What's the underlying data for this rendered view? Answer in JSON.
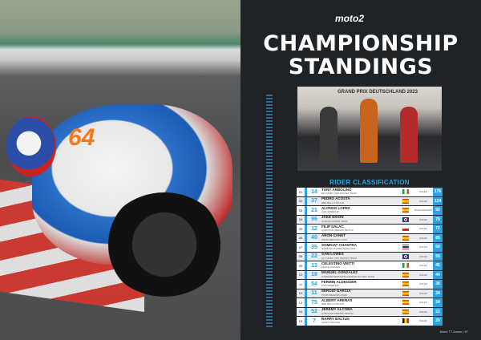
{
  "brand": "moto2",
  "title_line1": "CHAMPIONSHIP",
  "title_line2": "STANDINGS",
  "photo_caption": "GRAND PRIX DEUTSCHLAND 2023",
  "section": "RIDER CLASSIFICATION",
  "rider_number_on_bike": "64",
  "accent": "#2aa3e0",
  "riders": [
    {
      "pos": "01",
      "num": "14",
      "name": "TONY ARBOLINO",
      "team": "ELF MARC VDS RACING TEAM",
      "flag": "italy",
      "bike": "KALEX",
      "pts": "176"
    },
    {
      "pos": "02",
      "num": "37",
      "name": "PEDRO ACOSTA",
      "team": "RED BULL KTM AJO",
      "flag": "spain",
      "bike": "KALEX",
      "pts": "124"
    },
    {
      "pos": "03",
      "num": "21",
      "name": "ALONSO LOPEZ",
      "team": "CAG SPEEDUP",
      "flag": "spain",
      "bike": "BOSCOSCURO",
      "pts": "92"
    },
    {
      "pos": "04",
      "num": "96",
      "name": "JAKE DIXON",
      "team": "GASGAS ASPAR TEAM",
      "flag": "uk",
      "bike": "KALEX",
      "pts": "79"
    },
    {
      "pos": "05",
      "num": "12",
      "name": "FILIP SALAC",
      "team": "QJMOTOR GRESINI MOTO2",
      "flag": "czech",
      "bike": "KALEX",
      "pts": "72"
    },
    {
      "pos": "06",
      "num": "40",
      "name": "ARON CANET",
      "team": "PONS WEGOW LOS40",
      "flag": "spain",
      "bike": "KALEX",
      "pts": "65"
    },
    {
      "pos": "07",
      "num": "35",
      "name": "SOMKIAT CHANTRA",
      "team": "IDEMITSU HONDA TEAM ASIA",
      "flag": "thailand",
      "bike": "KALEX",
      "pts": "59"
    },
    {
      "pos": "08",
      "num": "22",
      "name": "SAM LOWES",
      "team": "ELF MARC VDS RACING TEAM",
      "flag": "uk",
      "bike": "KALEX",
      "pts": "55"
    },
    {
      "pos": "09",
      "num": "13",
      "name": "CELESTINO VIETTI",
      "team": "FANTIC RACING",
      "flag": "italy",
      "bike": "KALEX",
      "pts": "45"
    },
    {
      "pos": "10",
      "num": "18",
      "name": "MANUEL GONZALEZ",
      "team": "CORRADI PERTAMINA MANDALIKA SAG TEAM",
      "flag": "spain",
      "bike": "KALEX",
      "pts": "44"
    },
    {
      "pos": "11",
      "num": "54",
      "name": "FERMIN ALDEGUER",
      "team": "CAG SPEEDUP",
      "flag": "spain",
      "bike": "KALEX",
      "pts": "38"
    },
    {
      "pos": "12",
      "num": "11",
      "name": "SERGIO GARCIA",
      "team": "PONS WEGOW LOS40",
      "flag": "spain",
      "bike": "KALEX",
      "pts": "34"
    },
    {
      "pos": "13",
      "num": "75",
      "name": "ALBERT ARENAS",
      "team": "RED BULL KTM AJO",
      "flag": "spain",
      "bike": "KALEX",
      "pts": "34"
    },
    {
      "pos": "14",
      "num": "52",
      "name": "JEREMY ALCOBA",
      "team": "QJMOTOR GRESINI MOTO2",
      "flag": "spain",
      "bike": "KALEX",
      "pts": "22"
    },
    {
      "pos": "15",
      "num": "7",
      "name": "BARRY BALTUS",
      "team": "FANTIC RACING",
      "flag": "belgium",
      "bike": "KALEX",
      "pts": "20"
    }
  ],
  "footer": "Motul TT Assen | 87"
}
